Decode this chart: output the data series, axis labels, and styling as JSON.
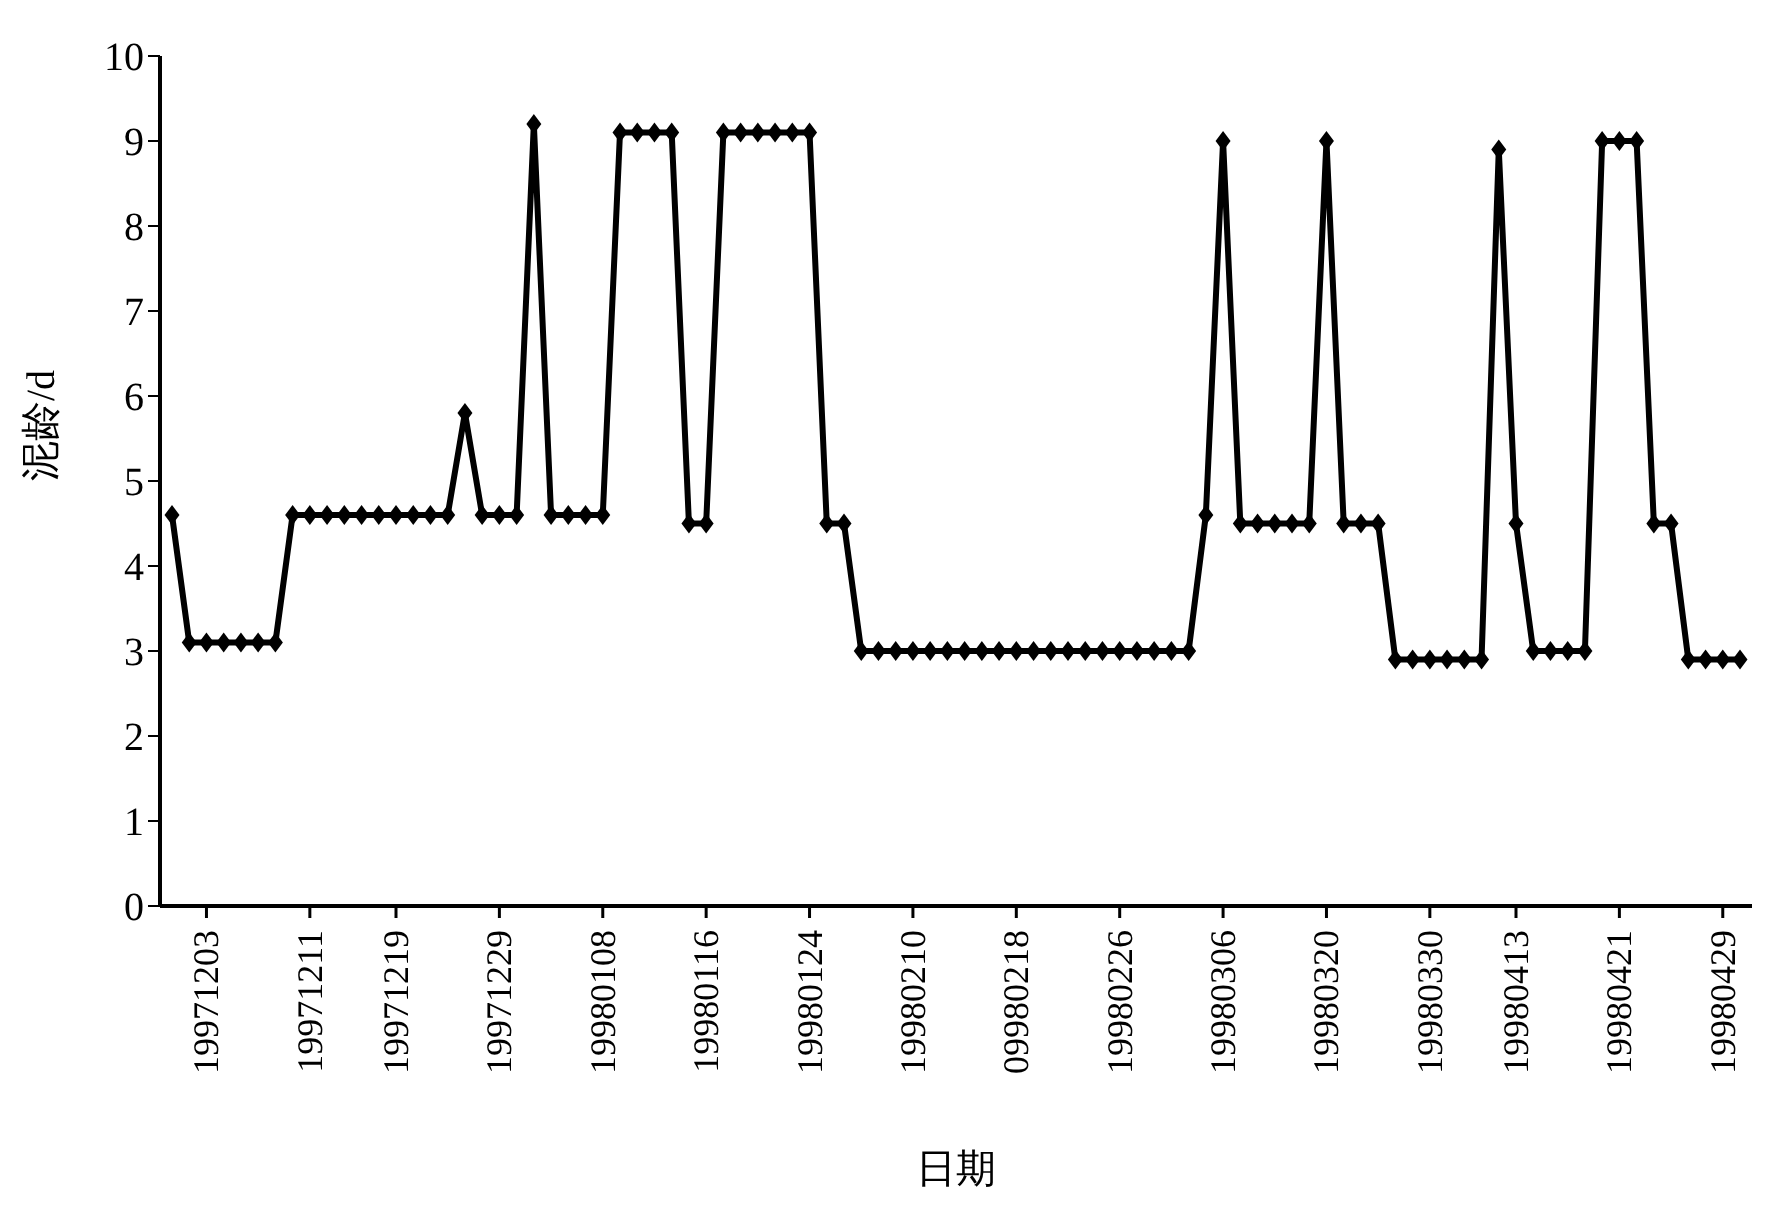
{
  "chart_data": {
    "type": "line",
    "xlabel": "日期",
    "ylabel": "泥龄/d",
    "categories": [
      null,
      null,
      "19971203",
      null,
      null,
      null,
      null,
      null,
      "19971211",
      null,
      null,
      null,
      null,
      "19971219",
      null,
      null,
      null,
      null,
      null,
      "19971229",
      null,
      null,
      null,
      null,
      null,
      "19980108",
      null,
      null,
      null,
      null,
      null,
      "19980116",
      null,
      null,
      null,
      null,
      null,
      "19980124",
      null,
      null,
      null,
      null,
      null,
      "19980210",
      null,
      null,
      null,
      null,
      null,
      "09980218",
      null,
      null,
      null,
      null,
      null,
      "19980226",
      null,
      null,
      null,
      null,
      null,
      "19980306",
      null,
      null,
      null,
      null,
      null,
      "19980320",
      null,
      null,
      null,
      null,
      null,
      "19980330",
      null,
      null,
      null,
      null,
      "19980413",
      null,
      null,
      null,
      null,
      null,
      "19980421",
      null,
      null,
      null,
      null,
      null,
      "19980429",
      null
    ],
    "values": [
      4.6,
      3.1,
      3.1,
      3.1,
      3.1,
      3.1,
      3.1,
      4.6,
      4.6,
      4.6,
      4.6,
      4.6,
      4.6,
      4.6,
      4.6,
      4.6,
      4.6,
      5.8,
      4.6,
      4.6,
      4.6,
      9.2,
      4.6,
      4.6,
      4.6,
      4.6,
      9.1,
      9.1,
      9.1,
      9.1,
      4.5,
      4.5,
      9.1,
      9.1,
      9.1,
      9.1,
      9.1,
      9.1,
      4.5,
      4.5,
      3.0,
      3.0,
      3.0,
      3.0,
      3.0,
      3.0,
      3.0,
      3.0,
      3.0,
      3.0,
      3.0,
      3.0,
      3.0,
      3.0,
      3.0,
      3.0,
      3.0,
      3.0,
      3.0,
      3.0,
      4.6,
      9.0,
      4.5,
      4.5,
      4.5,
      4.5,
      4.5,
      9.0,
      4.5,
      4.5,
      4.5,
      2.9,
      2.9,
      2.9,
      2.9,
      2.9,
      2.9,
      8.9,
      4.5,
      3.0,
      3.0,
      3.0,
      3.0,
      9.0,
      9.0,
      9.0,
      4.5,
      4.5,
      2.9,
      2.9,
      2.9,
      2.9
    ],
    "color": "#000000",
    "ylim": [
      0,
      10
    ],
    "yticks": [
      0,
      1,
      2,
      3,
      4,
      5,
      6,
      7,
      8,
      9,
      10
    ],
    "marker": "diamond",
    "line_style": "solid"
  }
}
